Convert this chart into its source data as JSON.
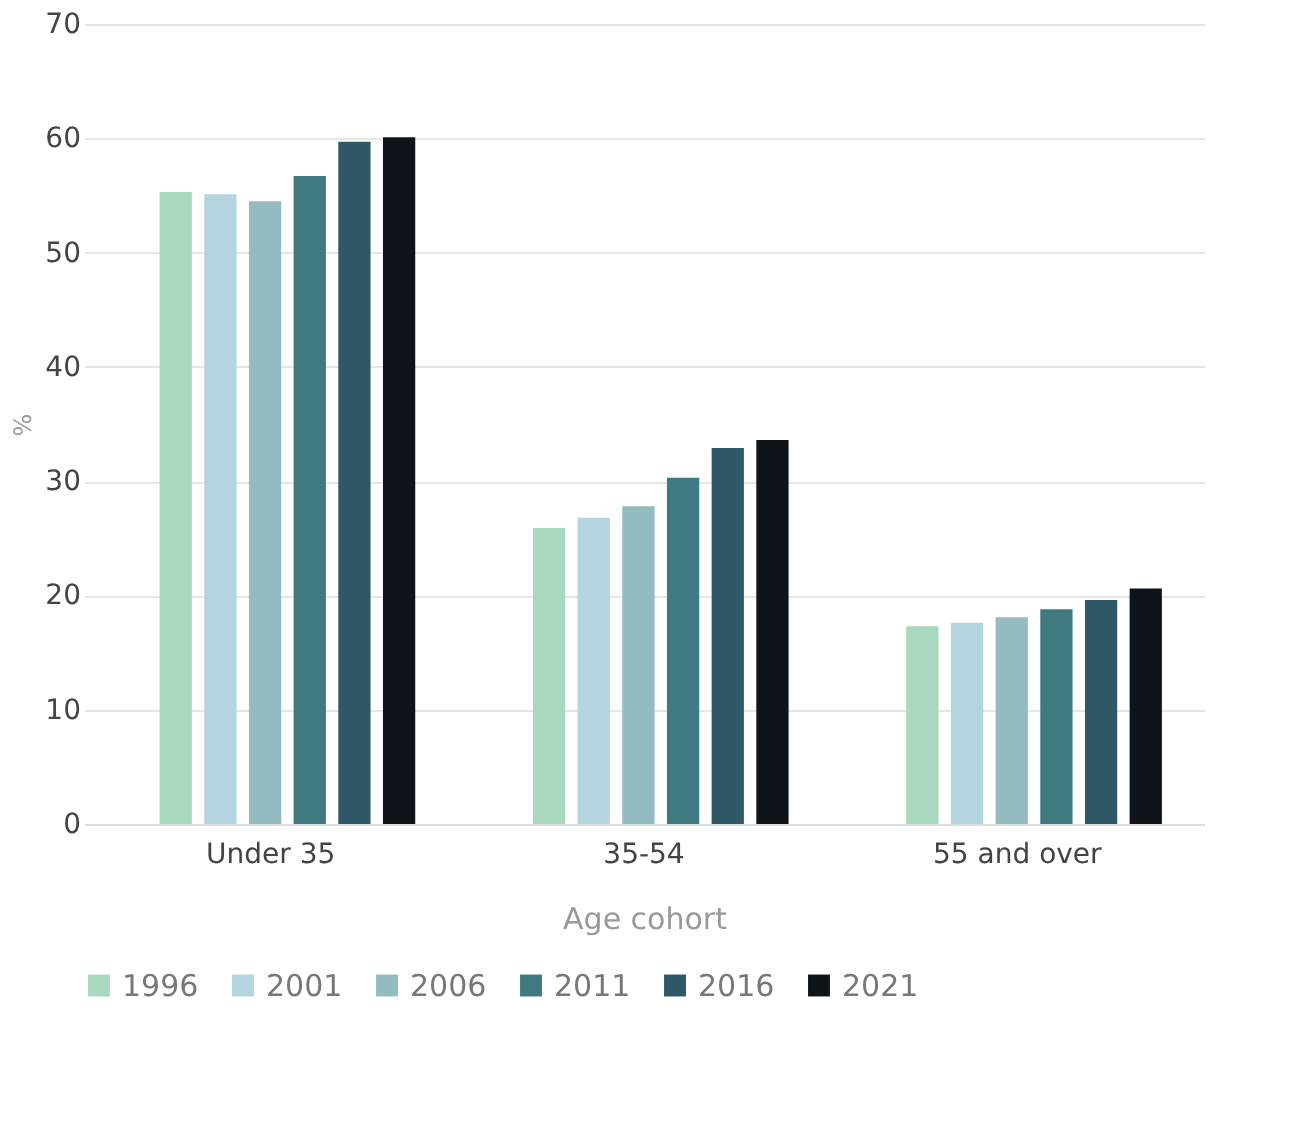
{
  "chart_data": {
    "type": "bar",
    "xlabel": "Age cohort",
    "ylabel": "%",
    "categories": [
      "Under 35",
      "35-54",
      "55 and over"
    ],
    "series": [
      {
        "name": "1996",
        "color": "#a8d8be",
        "values": [
          55.3,
          25.9,
          17.3
        ]
      },
      {
        "name": "2001",
        "color": "#b4d4e0",
        "values": [
          55.1,
          26.8,
          17.6
        ]
      },
      {
        "name": "2006",
        "color": "#92bcc0",
        "values": [
          54.5,
          27.8,
          18.1
        ]
      },
      {
        "name": "2011",
        "color": "#3f7a80",
        "values": [
          56.7,
          30.3,
          18.8
        ]
      },
      {
        "name": "2016",
        "color": "#2f5866",
        "values": [
          59.7,
          32.9,
          19.6
        ]
      },
      {
        "name": "2021",
        "color": "#0e1419",
        "values": [
          60.1,
          33.6,
          20.6
        ]
      }
    ],
    "ylim": [
      0,
      70
    ],
    "yticks": [
      0,
      10,
      20,
      30,
      40,
      50,
      60,
      70
    ],
    "grid": "y",
    "legend": "bottom"
  }
}
